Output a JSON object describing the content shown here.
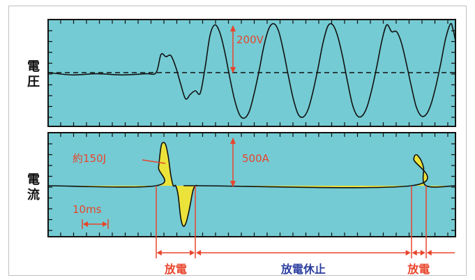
{
  "chart_data": [
    {
      "type": "line",
      "panel": "voltage",
      "ylabel": "電圧",
      "annotations": [
        {
          "text": "200V"
        }
      ],
      "x_unit": "ms",
      "baseline": 0,
      "series": [
        {
          "name": "",
          "x": [
            0,
            10,
            20,
            30,
            40,
            44,
            46,
            48,
            50,
            52,
            54,
            56,
            58,
            60,
            62,
            64,
            66,
            68,
            70,
            72,
            74,
            76,
            78,
            80,
            82,
            84,
            86,
            88,
            90,
            92,
            94,
            96,
            98,
            100,
            102,
            104,
            106,
            108,
            110,
            112,
            114,
            116,
            118,
            120,
            122,
            124,
            126,
            128,
            130,
            132,
            134,
            136,
            138,
            140,
            142,
            144,
            146,
            148,
            150,
            152,
            154,
            156,
            158,
            160,
            162,
            164,
            165,
            166
          ],
          "y": [
            0,
            -10,
            -5,
            -10,
            -5,
            0,
            80,
            70,
            75,
            25,
            -50,
            -115,
            -95,
            -80,
            -90,
            25,
            165,
            210,
            175,
            90,
            -20,
            -120,
            -185,
            -200,
            -170,
            -90,
            10,
            120,
            195,
            215,
            180,
            90,
            -20,
            -120,
            -185,
            -195,
            -160,
            -80,
            20,
            130,
            205,
            210,
            160,
            70,
            -40,
            -140,
            -190,
            -190,
            -150,
            -70,
            30,
            140,
            210,
            180,
            180,
            130,
            40,
            -60,
            -150,
            -190,
            -185,
            -140,
            -60,
            40,
            150,
            215,
            190,
            140
          ]
        }
      ]
    },
    {
      "type": "area",
      "panel": "current",
      "ylabel": "電流",
      "annotations": [
        {
          "text": "約150J"
        },
        {
          "text": "500A"
        }
      ],
      "scale_bar": {
        "label": "10ms",
        "value_ms": 10
      },
      "periods": [
        {
          "label": "放電",
          "color": "#e8452c",
          "start_ms": 44,
          "end_ms": 60
        },
        {
          "label": "放電休止",
          "color": "#2a3d9e",
          "start_ms": 60,
          "end_ms": 148
        },
        {
          "label": "放電",
          "color": "#e8452c",
          "start_ms": 148,
          "end_ms": 154
        }
      ],
      "series": [
        {
          "name": "",
          "x": [
            0,
            44,
            45,
            46,
            47,
            48,
            49,
            50,
            51,
            52,
            53,
            54,
            55,
            56,
            57,
            58,
            59,
            60,
            61,
            62,
            148,
            149,
            150,
            151,
            152,
            153,
            154,
            166
          ],
          "y": [
            0,
            0,
            300,
            630,
            700,
            650,
            460,
            170,
            0,
            0,
            -160,
            -510,
            -650,
            -620,
            -480,
            -290,
            -80,
            0,
            0,
            0,
            0,
            430,
            500,
            470,
            410,
            290,
            0,
            0
          ]
        }
      ]
    }
  ]
}
